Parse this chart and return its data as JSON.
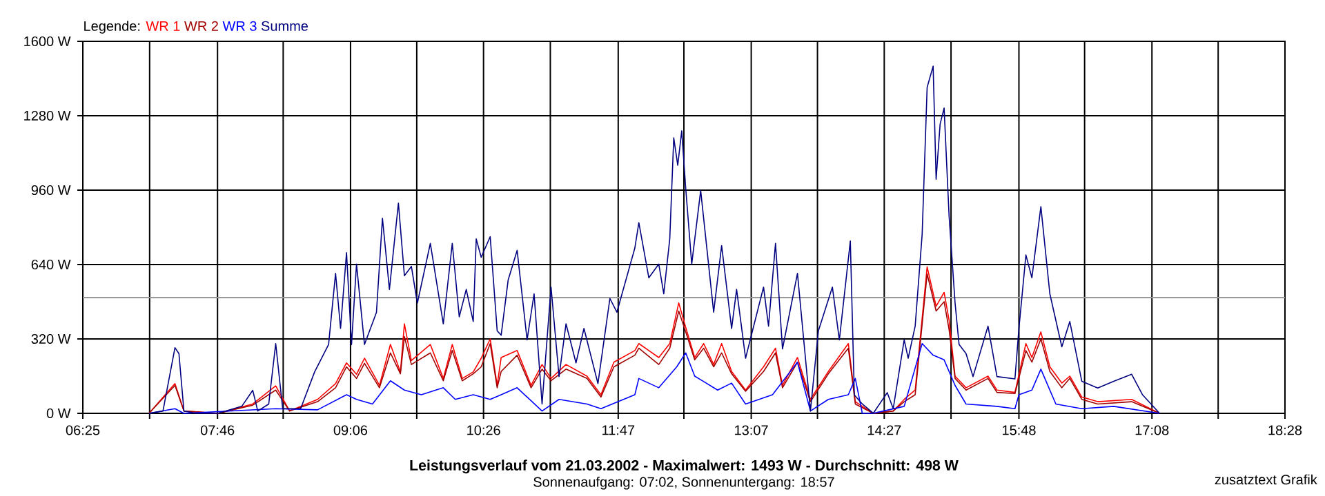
{
  "chart_data": {
    "type": "line",
    "title": "Leistungsverlauf vom 21.03.2002 - Maximalwert: 1493 W - Durchschnitt: 498 W",
    "subtitle": "Sonnenaufgang: 07:02, Sonnenuntergang: 18:57",
    "legend_title": "Legende:",
    "legend": "top left",
    "grid": true,
    "annotations": [
      "zusatztext Grafik"
    ],
    "xlim": [
      6.4167,
      18.4667
    ],
    "xticks": [
      {
        "value": 6.4167,
        "label": "06:25"
      },
      {
        "value": 7.0861,
        "label": null
      },
      {
        "value": 7.7667,
        "label": "07:46"
      },
      {
        "value": 8.425,
        "label": null
      },
      {
        "value": 9.1,
        "label": "09:06"
      },
      {
        "value": 9.7639,
        "label": null
      },
      {
        "value": 10.4333,
        "label": "10:26"
      },
      {
        "value": 11.1028,
        "label": null
      },
      {
        "value": 11.7833,
        "label": "11:47"
      },
      {
        "value": 12.4417,
        "label": null
      },
      {
        "value": 13.1167,
        "label": "13:07"
      },
      {
        "value": 13.7806,
        "label": null
      },
      {
        "value": 14.45,
        "label": "14:27"
      },
      {
        "value": 15.1194,
        "label": null
      },
      {
        "value": 15.8,
        "label": "15:48"
      },
      {
        "value": 16.4583,
        "label": null
      },
      {
        "value": 17.1333,
        "label": "17:08"
      },
      {
        "value": 17.7972,
        "label": null
      },
      {
        "value": 18.4667,
        "label": "18:28"
      }
    ],
    "ylim": [
      0,
      1600
    ],
    "yticks": [
      {
        "value": 0,
        "label": "0 W"
      },
      {
        "value": 320,
        "label": "320 W"
      },
      {
        "value": 640,
        "label": "640 W"
      },
      {
        "value": 960,
        "label": "960 W"
      },
      {
        "value": 1280,
        "label": "1280 W"
      },
      {
        "value": 1600,
        "label": "1600 W"
      }
    ],
    "ref_lines": [
      {
        "axis": "y",
        "value": 498,
        "color": "#999999"
      }
    ],
    "series": [
      {
        "name": "WR 1",
        "color": "#ff0000",
        "x": [
          7.08,
          7.34,
          7.43,
          7.77,
          8.12,
          8.35,
          8.49,
          8.77,
          8.95,
          9.06,
          9.16,
          9.24,
          9.39,
          9.5,
          9.6,
          9.64,
          9.71,
          9.9,
          10.03,
          10.12,
          10.22,
          10.33,
          10.41,
          10.5,
          10.57,
          10.61,
          10.77,
          10.91,
          11.02,
          11.11,
          11.26,
          11.47,
          11.61,
          11.74,
          11.95,
          11.99,
          12.19,
          12.3,
          12.39,
          12.46,
          12.55,
          12.64,
          12.74,
          12.82,
          12.92,
          13.06,
          13.24,
          13.36,
          13.43,
          13.58,
          13.71,
          13.89,
          14.09,
          14.16,
          14.34,
          14.54,
          14.65,
          14.76,
          14.88,
          14.97,
          15.05,
          15.1,
          15.16,
          15.27,
          15.49,
          15.58,
          15.76,
          15.87,
          15.93,
          16.02,
          16.11,
          16.23,
          16.31,
          16.43,
          16.59,
          16.93,
          17.21
        ],
        "values": [
          0,
          128,
          10,
          0,
          40,
          118,
          10,
          60,
          128,
          217,
          168,
          237,
          120,
          296,
          178,
          385,
          227,
          296,
          150,
          296,
          150,
          178,
          237,
          320,
          120,
          240,
          270,
          120,
          210,
          150,
          210,
          160,
          80,
          220,
          270,
          300,
          240,
          300,
          475,
          370,
          240,
          300,
          210,
          300,
          180,
          100,
          200,
          280,
          120,
          240,
          60,
          180,
          300,
          50,
          0,
          10,
          60,
          100,
          630,
          460,
          520,
          400,
          160,
          110,
          160,
          100,
          90,
          300,
          240,
          350,
          200,
          130,
          160,
          70,
          50,
          60,
          0
        ]
      },
      {
        "name": "WR 2",
        "color": "#a00000",
        "x": [
          7.08,
          7.34,
          7.43,
          7.77,
          8.12,
          8.35,
          8.49,
          8.77,
          8.95,
          9.06,
          9.16,
          9.24,
          9.39,
          9.5,
          9.6,
          9.64,
          9.71,
          9.9,
          10.03,
          10.12,
          10.22,
          10.33,
          10.41,
          10.5,
          10.57,
          10.61,
          10.77,
          10.91,
          11.02,
          11.11,
          11.26,
          11.47,
          11.61,
          11.74,
          11.95,
          11.99,
          12.19,
          12.3,
          12.39,
          12.46,
          12.55,
          12.64,
          12.74,
          12.82,
          12.92,
          13.06,
          13.24,
          13.36,
          13.43,
          13.58,
          13.71,
          13.89,
          14.09,
          14.16,
          14.34,
          14.54,
          14.65,
          14.76,
          14.88,
          14.97,
          15.05,
          15.1,
          15.16,
          15.27,
          15.49,
          15.58,
          15.76,
          15.87,
          15.93,
          16.02,
          16.11,
          16.23,
          16.31,
          16.43,
          16.59,
          16.93,
          17.21
        ],
        "values": [
          0,
          120,
          10,
          0,
          35,
          100,
          10,
          50,
          110,
          200,
          150,
          215,
          110,
          260,
          170,
          330,
          210,
          260,
          140,
          270,
          140,
          170,
          200,
          300,
          110,
          180,
          250,
          110,
          190,
          140,
          190,
          150,
          70,
          200,
          250,
          280,
          210,
          280,
          440,
          350,
          230,
          280,
          200,
          260,
          170,
          95,
          180,
          260,
          110,
          220,
          50,
          170,
          280,
          40,
          0,
          10,
          50,
          80,
          600,
          440,
          480,
          360,
          150,
          100,
          150,
          90,
          85,
          270,
          220,
          320,
          180,
          110,
          150,
          60,
          40,
          50,
          0
        ]
      },
      {
        "name": "WR 3",
        "color": "#0000ff",
        "x": [
          7.08,
          7.34,
          7.43,
          8.35,
          8.77,
          9.06,
          9.16,
          9.32,
          9.5,
          9.64,
          9.81,
          10.03,
          10.15,
          10.33,
          10.5,
          10.61,
          10.77,
          11.02,
          11.19,
          11.47,
          11.61,
          11.95,
          11.99,
          12.19,
          12.37,
          12.46,
          12.55,
          12.78,
          12.92,
          13.06,
          13.33,
          13.58,
          13.71,
          13.89,
          14.09,
          14.16,
          14.23,
          14.34,
          14.65,
          14.83,
          14.94,
          15.05,
          15.16,
          15.27,
          15.58,
          15.76,
          15.8,
          15.93,
          16.02,
          16.17,
          16.43,
          16.75,
          17.21
        ],
        "values": [
          0,
          20,
          0,
          20,
          15,
          80,
          60,
          40,
          140,
          100,
          80,
          110,
          60,
          80,
          60,
          80,
          110,
          10,
          60,
          40,
          20,
          80,
          150,
          110,
          200,
          260,
          160,
          100,
          130,
          40,
          80,
          220,
          10,
          60,
          80,
          150,
          0,
          0,
          30,
          300,
          250,
          230,
          120,
          40,
          30,
          20,
          80,
          100,
          190,
          40,
          20,
          30,
          0
        ]
      },
      {
        "name": "Summe",
        "color": "#000080",
        "x": [
          7.08,
          7.22,
          7.34,
          7.38,
          7.43,
          7.55,
          7.77,
          8.01,
          8.12,
          8.17,
          8.28,
          8.35,
          8.42,
          8.6,
          8.74,
          8.88,
          8.95,
          9.0,
          9.06,
          9.11,
          9.16,
          9.24,
          9.36,
          9.42,
          9.49,
          9.58,
          9.64,
          9.71,
          9.77,
          9.9,
          10.03,
          10.12,
          10.19,
          10.26,
          10.33,
          10.36,
          10.41,
          10.5,
          10.57,
          10.61,
          10.68,
          10.77,
          10.87,
          10.94,
          11.02,
          11.11,
          11.19,
          11.26,
          11.36,
          11.44,
          11.58,
          11.7,
          11.77,
          11.95,
          11.99,
          12.09,
          12.19,
          12.24,
          12.3,
          12.34,
          12.38,
          12.42,
          12.46,
          12.52,
          12.61,
          12.74,
          12.82,
          12.92,
          12.97,
          13.06,
          13.24,
          13.29,
          13.36,
          13.43,
          13.58,
          13.71,
          13.79,
          13.93,
          14.0,
          14.11,
          14.15,
          14.23,
          14.34,
          14.48,
          14.54,
          14.65,
          14.69,
          14.76,
          14.83,
          14.88,
          14.94,
          14.97,
          15.01,
          15.05,
          15.1,
          15.16,
          15.2,
          15.27,
          15.34,
          15.49,
          15.58,
          15.76,
          15.8,
          15.87,
          15.93,
          16.02,
          16.11,
          16.23,
          16.31,
          16.43,
          16.59,
          16.75,
          16.93,
          17.04,
          17.21
        ],
        "values": [
          0,
          10,
          282,
          257,
          10,
          0,
          0,
          30,
          99,
          10,
          40,
          300,
          20,
          20,
          178,
          296,
          602,
          365,
          691,
          296,
          642,
          296,
          434,
          839,
          533,
          904,
          592,
          632,
          474,
          731,
          385,
          731,
          415,
          533,
          395,
          750,
          671,
          760,
          355,
          336,
          573,
          701,
          316,
          514,
          40,
          543,
          158,
          385,
          217,
          365,
          128,
          494,
          435,
          711,
          820,
          583,
          642,
          514,
          750,
          1185,
          1067,
          1215,
          968,
          642,
          958,
          435,
          721,
          365,
          533,
          237,
          543,
          375,
          731,
          277,
          602,
          10,
          355,
          543,
          316,
          741,
          79,
          40,
          0,
          89,
          20,
          316,
          237,
          375,
          770,
          1402,
          1493,
          1007,
          1244,
          1313,
          849,
          474,
          296,
          257,
          158,
          375,
          158,
          148,
          365,
          681,
          583,
          889,
          514,
          286,
          395,
          138,
          109,
          138,
          168,
          79,
          0
        ]
      }
    ]
  }
}
